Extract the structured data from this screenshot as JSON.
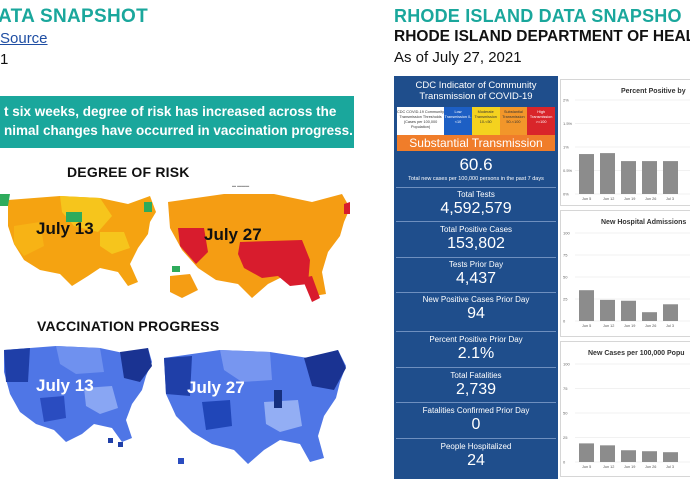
{
  "left": {
    "title": "ATA SNAPSHOT",
    "source_link": "Source",
    "date": "1",
    "callout": {
      "line1": "t six weeks, degree of risk has increased across the",
      "line2": "nimal changes have occurred in vaccination progress."
    },
    "risk": {
      "heading": "DEGREE OF RISK",
      "map1_label": "July 13",
      "map2_label": "July 27"
    },
    "vaccination": {
      "heading": "VACCINATION PROGRESS",
      "map1_label": "July 13",
      "map2_label": "July 27"
    }
  },
  "right": {
    "title": "RHODE ISLAND DATA SNAPSHO",
    "department": "RHODE ISLAND DEPARTMENT OF HEAL",
    "as_of": "As of July 27, 2021",
    "cdc": {
      "heading_line1": "CDC Indicator of Community",
      "heading_line2": "Transmission of COVID-19",
      "legend": [
        "CDC COVID-19 Community Transmission Thresholds (Cases per 100,000 Population)",
        "Low Transmission 0-<10",
        "Moderate Transmission 10-<50",
        "Substantial Transmission 50-<100",
        "High Transmission >=100"
      ],
      "level": "Substantial Transmission",
      "rate": "60.6",
      "rate_label": "Total new cases per 100,000 persons in the past 7 days"
    },
    "stats": [
      {
        "label": "Total Tests",
        "value": "4,592,579"
      },
      {
        "label": "Total Positive Cases",
        "value": "153,802"
      },
      {
        "label": "Tests Prior Day",
        "value": "4,437"
      },
      {
        "label": "New Positive Cases Prior Day",
        "value": "94"
      },
      {
        "label": "Percent Positive Prior Day",
        "value": "2.1%"
      },
      {
        "label": "Total Fatalities",
        "value": "2,739"
      },
      {
        "label": "Fatalities Confirmed Prior Day",
        "value": "0"
      },
      {
        "label": "People Hospitalized",
        "value": "24"
      }
    ],
    "colors": {
      "teal": "#1aa79c",
      "navy": "#1f4e8c",
      "substantial_orange": "#f07d2a",
      "bar_gray": "#8c8c8c"
    }
  },
  "chart_data": [
    {
      "type": "bar",
      "title": "Percent Positive by",
      "categories": [
        "Jun 5",
        "Jun 12",
        "Jun 19",
        "Jun 26",
        "Jul 3"
      ],
      "values": [
        0.85,
        0.87,
        0.7,
        0.7,
        0.7
      ],
      "yticks": [
        "0%",
        "0.5%",
        "1%",
        "1.5%",
        "2%"
      ],
      "ylim": [
        0,
        2
      ]
    },
    {
      "type": "bar",
      "title": "New Hospital Admissions",
      "categories": [
        "Jun 5",
        "Jun 12",
        "Jun 19",
        "Jun 26",
        "Jul 3"
      ],
      "values": [
        35,
        24,
        23,
        10,
        19
      ],
      "yticks": [
        "0",
        "25",
        "50",
        "75",
        "100"
      ],
      "ylim": [
        0,
        100
      ]
    },
    {
      "type": "bar",
      "title": "New Cases per 100,000 Popu",
      "categories": [
        "Jun 5",
        "Jun 12",
        "Jun 19",
        "Jun 26",
        "Jul 3"
      ],
      "values": [
        19,
        17,
        12,
        11,
        10
      ],
      "yticks": [
        "0",
        "25",
        "50",
        "75",
        "100"
      ],
      "ylim": [
        0,
        100
      ]
    }
  ]
}
